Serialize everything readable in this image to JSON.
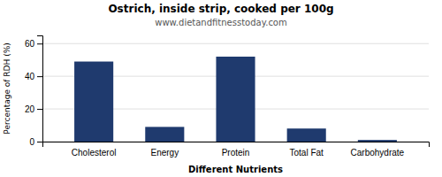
{
  "chart_data": {
    "type": "bar",
    "title": "Ostrich, inside strip, cooked per 100g",
    "subtitle": "www.dietandfitnesstoday.com",
    "xlabel": "Different Nutrients",
    "ylabel": "Percentage of RDH (%)",
    "categories": [
      "Cholesterol",
      "Energy",
      "Protein",
      "Total Fat",
      "Carbohydrate"
    ],
    "values": [
      49,
      9,
      52,
      8,
      1
    ],
    "color": "#1f3a6e",
    "ylim": [
      0,
      65
    ],
    "yticks": [
      0,
      20,
      40,
      60
    ],
    "grid": true
  }
}
